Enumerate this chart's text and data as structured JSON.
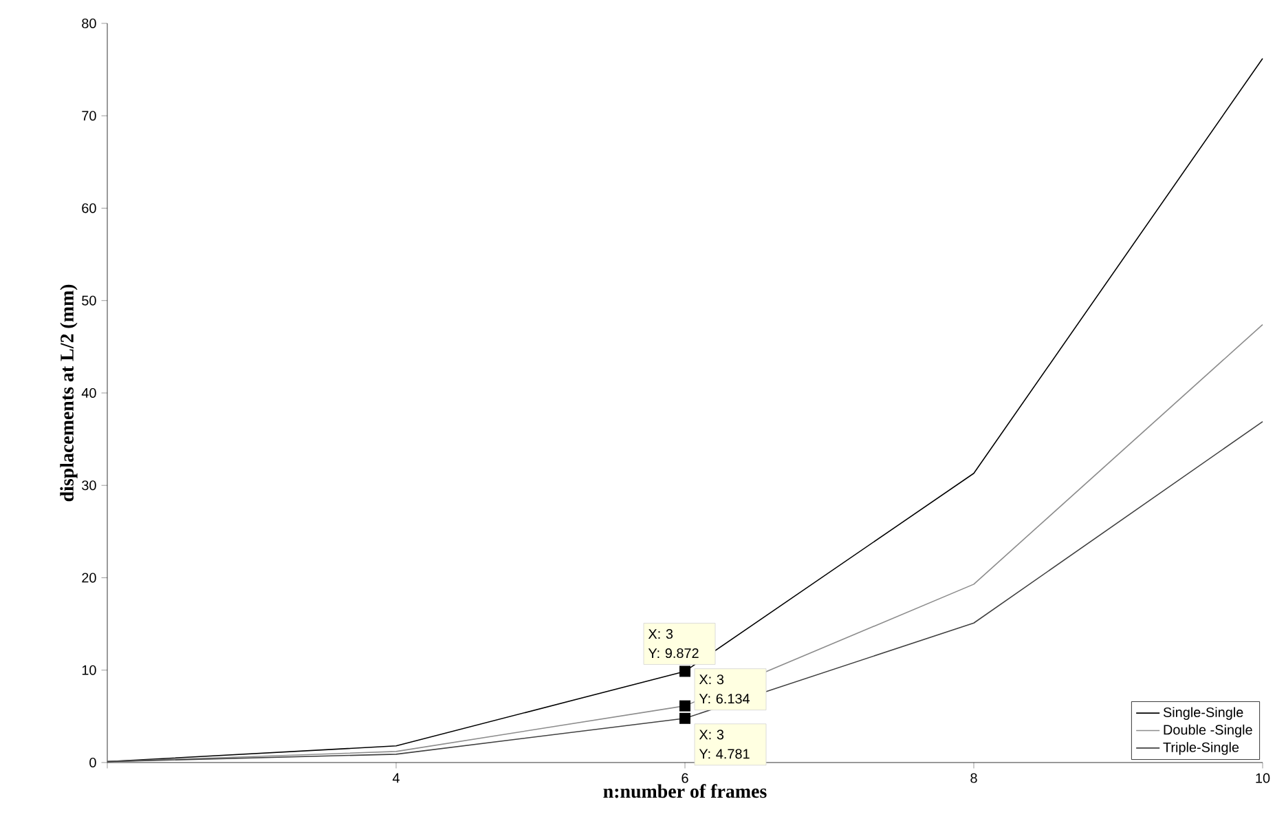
{
  "chart_data": {
    "type": "line",
    "xlabel": "n:number of frames",
    "ylabel": "displacements at L/2 (mm)",
    "x": [
      2,
      4,
      6,
      8,
      10
    ],
    "series": [
      {
        "name": "Single-Single",
        "color": "#000000",
        "values": [
          0.1,
          1.8,
          9.872,
          31.3,
          76.2
        ]
      },
      {
        "name": "Double -Single",
        "color": "#8c8c8c",
        "values": [
          0.1,
          1.2,
          6.134,
          19.3,
          47.4
        ]
      },
      {
        "name": "Triple-Single",
        "color": "#404040",
        "values": [
          0.1,
          0.9,
          4.781,
          15.1,
          36.9
        ]
      }
    ],
    "xlim": [
      2,
      10
    ],
    "ylim": [
      0,
      80
    ],
    "xticks": [
      {
        "value": 2,
        "label": null
      },
      4,
      6,
      8,
      10
    ],
    "yticks": [
      0,
      10,
      20,
      30,
      40,
      50,
      60,
      70,
      80
    ],
    "legend": "bottom right",
    "grid": false,
    "marker": "none",
    "line_style": "solid",
    "annotations": [
      "X: 3",
      "Y: 9.872",
      "X: 3",
      "Y: 6.134",
      "X: 3",
      "Y: 4.781"
    ]
  }
}
